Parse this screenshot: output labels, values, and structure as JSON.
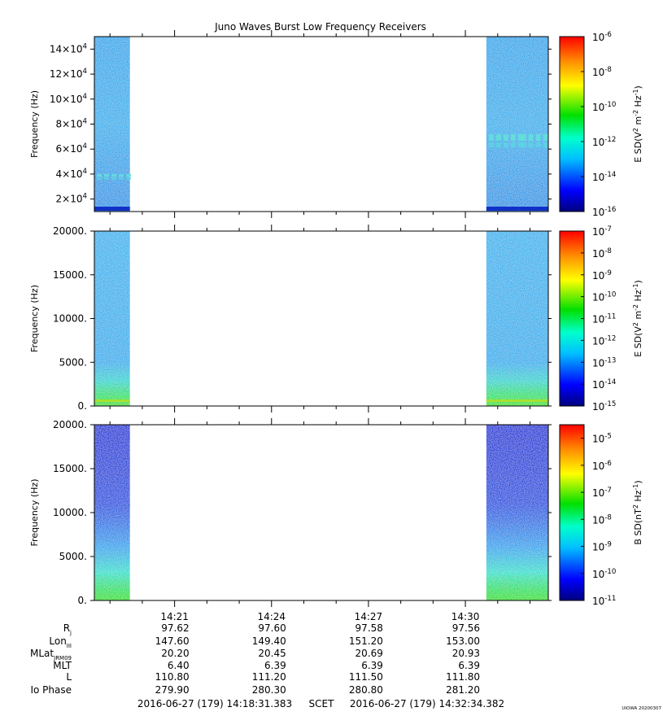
{
  "title": "Juno Waves Burst Low Frequency Receivers",
  "time_axis": {
    "start": "14:18:31",
    "end": "14:32:34",
    "tick_labels": [
      "14:21",
      "14:24",
      "14:27",
      "14:30"
    ]
  },
  "chart_data": [
    {
      "type": "heatmap",
      "ylabel": "Frequency (Hz)",
      "ylim": [
        10000,
        150000
      ],
      "yticks": [
        "2×10⁴",
        "4×10⁴",
        "6×10⁴",
        "8×10⁴",
        "10×10⁴",
        "12×10⁴",
        "14×10⁴"
      ],
      "yticks_values": [
        20000,
        40000,
        60000,
        80000,
        100000,
        120000,
        140000
      ],
      "colorbar_label": "E SD(V² m⁻² Hz⁻¹)",
      "colorbar_ticks": [
        "10⁻⁶",
        "10⁻⁸",
        "10⁻¹⁰",
        "10⁻¹²",
        "10⁻¹⁴",
        "10⁻¹⁶"
      ],
      "colorbar_range_log10": [
        -16,
        -6
      ],
      "data_intervals": [
        [
          "14:18:31",
          "14:19:37"
        ],
        [
          "14:30:39",
          "14:31:45"
        ],
        [
          "14:31:39",
          "14:32:34"
        ]
      ],
      "features": [
        {
          "interval": 0,
          "band_hz": [
            35000,
            40000
          ]
        },
        {
          "interval": 1,
          "band_hz": [
            60000,
            72000
          ]
        },
        {
          "interval": 2,
          "band_hz": [
            60000,
            72000
          ]
        }
      ]
    },
    {
      "type": "heatmap",
      "ylabel": "Frequency (Hz)",
      "ylim": [
        0,
        20000
      ],
      "yticks": [
        "0.",
        "5000.",
        "10000.",
        "15000.",
        "20000."
      ],
      "yticks_values": [
        0,
        5000,
        10000,
        15000,
        20000
      ],
      "colorbar_label": "E SD(V² m⁻² Hz⁻¹)",
      "colorbar_ticks": [
        "10⁻⁷",
        "10⁻⁸",
        "10⁻⁹",
        "10⁻¹⁰",
        "10⁻¹¹",
        "10⁻¹²",
        "10⁻¹³",
        "10⁻¹⁴",
        "10⁻¹⁵"
      ],
      "colorbar_range_log10": [
        -15,
        -7
      ],
      "data_intervals": [
        [
          "14:18:31",
          "14:19:37"
        ],
        [
          "14:30:39",
          "14:31:45"
        ],
        [
          "14:31:39",
          "14:32:34"
        ]
      ]
    },
    {
      "type": "heatmap",
      "ylabel": "Frequency (Hz)",
      "ylim": [
        0,
        20000
      ],
      "yticks": [
        "0.",
        "5000.",
        "10000.",
        "15000.",
        "20000."
      ],
      "yticks_values": [
        0,
        5000,
        10000,
        15000,
        20000
      ],
      "colorbar_label": "B SD(nT² Hz⁻¹)",
      "colorbar_ticks": [
        "10⁻⁵",
        "10⁻⁶",
        "10⁻⁷",
        "10⁻⁸",
        "10⁻⁹",
        "10⁻¹⁰",
        "10⁻¹¹"
      ],
      "colorbar_range_log10": [
        -11,
        -4.5
      ],
      "data_intervals": [
        [
          "14:18:31",
          "14:19:37"
        ],
        [
          "14:30:39",
          "14:31:45"
        ],
        [
          "14:31:39",
          "14:32:34"
        ]
      ]
    }
  ],
  "ephemeris": {
    "rows": [
      {
        "label": "Rj",
        "values": [
          "97.62",
          "97.60",
          "97.58",
          "97.56"
        ]
      },
      {
        "label": "LonIII",
        "values": [
          "147.60",
          "149.40",
          "151.20",
          "153.00"
        ]
      },
      {
        "label": "MLatJRM09",
        "values": [
          "20.20",
          "20.45",
          "20.69",
          "20.93"
        ]
      },
      {
        "label": "MLT",
        "values": [
          "6.40",
          "6.39",
          "6.39",
          "6.39"
        ]
      },
      {
        "label": "L",
        "values": [
          "110.80",
          "111.20",
          "111.50",
          "111.80"
        ]
      },
      {
        "label": "Io Phase",
        "values": [
          "279.90",
          "280.30",
          "280.80",
          "281.20"
        ]
      }
    ]
  },
  "footer": {
    "start": "2016-06-27 (179) 14:18:31.383",
    "scet": "SCET",
    "end": "2016-06-27 (179) 14:32:34.382",
    "stamp": "UIOWA 20200307"
  }
}
